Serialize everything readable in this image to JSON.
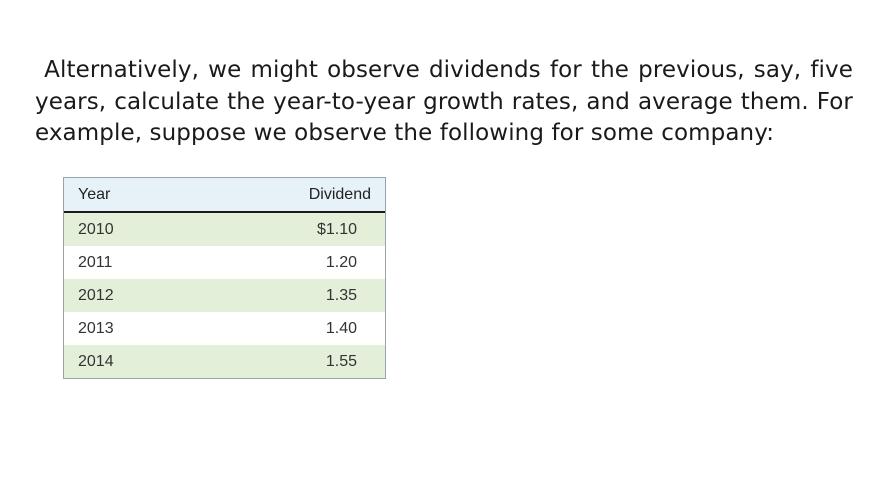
{
  "paragraph": " Alternatively, we might observe dividends for the previous, say, five years, calculate the year-to-year growth rates, and average them. For example, suppose we observe the following for some company:",
  "table": {
    "headers": {
      "year": "Year",
      "dividend": "Dividend"
    },
    "rows": [
      {
        "year": "2010",
        "dividend": "$1.10"
      },
      {
        "year": "2011",
        "dividend": "1.20"
      },
      {
        "year": "2012",
        "dividend": "1.35"
      },
      {
        "year": "2013",
        "dividend": "1.40"
      },
      {
        "year": "2014",
        "dividend": "1.55"
      }
    ]
  },
  "colors": {
    "header_background": "#e6f2f8",
    "shaded_row": "#e3efd9"
  }
}
